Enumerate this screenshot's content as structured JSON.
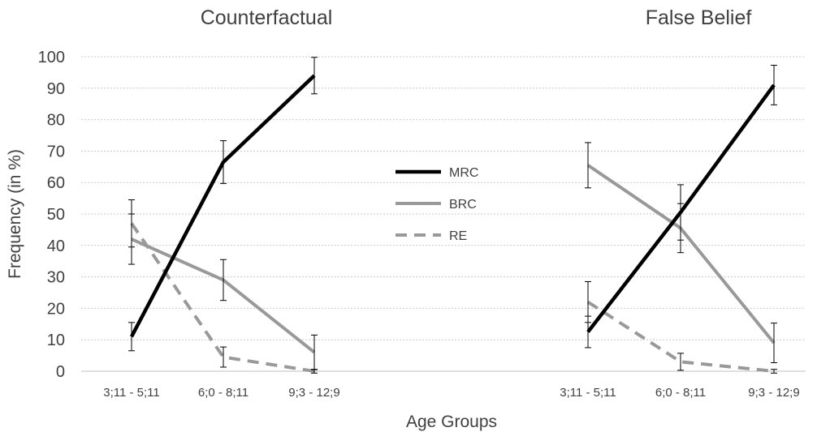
{
  "chart_data": {
    "type": "line",
    "ylabel": "Frequency (in %)",
    "xlabel": "Age Groups",
    "ylim": [
      0,
      100
    ],
    "yticks": [
      0,
      10,
      20,
      30,
      40,
      50,
      60,
      70,
      80,
      90,
      100
    ],
    "grid": "horizontal dotted",
    "legend_placement": "center",
    "categories": [
      "3;11 - 5;11",
      "6;0 - 8;11",
      "9;3 - 12;9"
    ],
    "series_styles": [
      {
        "name": "MRC",
        "color": "#000000",
        "dash": "solid"
      },
      {
        "name": "BRC",
        "color": "#999999",
        "dash": "solid"
      },
      {
        "name": "RE",
        "color": "#999999",
        "dash": "dashed"
      }
    ],
    "panels": [
      {
        "title": "Counterfactual",
        "series": [
          {
            "name": "MRC",
            "values": [
              11,
              66.5,
              94
            ],
            "errors": [
              4.5,
              6.8,
              5.8
            ]
          },
          {
            "name": "BRC",
            "values": [
              42,
              29,
              6
            ],
            "errors": [
              8,
              6.5,
              5.5
            ]
          },
          {
            "name": "RE",
            "values": [
              47,
              4.5,
              0
            ],
            "errors": [
              7.5,
              3.2,
              0.6
            ]
          }
        ]
      },
      {
        "title": "False Belief",
        "series": [
          {
            "name": "MRC",
            "values": [
              12.5,
              50.5,
              91
            ],
            "errors": [
              5,
              8.8,
              6.3
            ]
          },
          {
            "name": "BRC",
            "values": [
              65.5,
              45.5,
              9
            ],
            "errors": [
              7.2,
              7.8,
              6.3
            ]
          },
          {
            "name": "RE",
            "values": [
              22,
              3,
              0
            ],
            "errors": [
              6.5,
              2.7,
              0.6
            ]
          }
        ]
      }
    ]
  }
}
